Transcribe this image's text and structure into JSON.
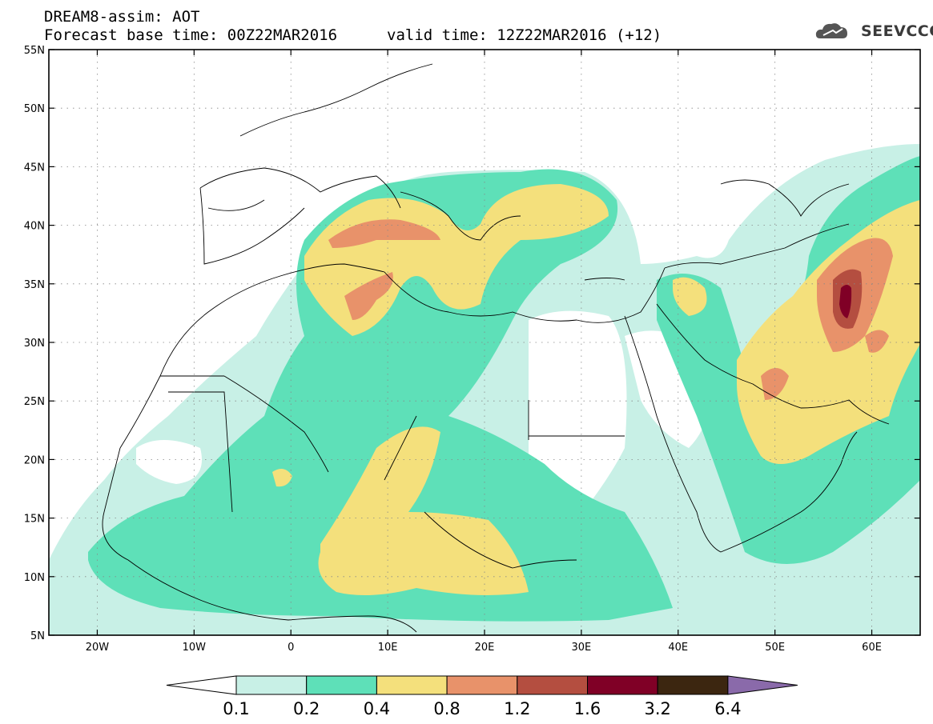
{
  "header": {
    "title_line1": "DREAM8-assim: AOT",
    "base_time": "Forecast base time: 00Z22MAR2016",
    "valid_time": "valid time: 12Z22MAR2016 (+12)",
    "logo_text": "SEEVCCC",
    "logo_icon": "cloud-icon"
  },
  "map": {
    "lon_range": [
      -25,
      65
    ],
    "lat_range": [
      5,
      55
    ],
    "lat_ticks": [
      "55N",
      "50N",
      "45N",
      "40N",
      "35N",
      "30N",
      "25N",
      "20N",
      "15N",
      "10N",
      "5N"
    ],
    "lon_ticks": [
      "20W",
      "10W",
      "0",
      "10E",
      "20E",
      "30E",
      "40E",
      "50E",
      "60E"
    ],
    "gridlines": "dotted"
  },
  "colorbar": {
    "labels": [
      "0.1",
      "0.2",
      "0.4",
      "0.8",
      "1.2",
      "1.6",
      "3.2",
      "6.4"
    ],
    "colors": [
      "#ffffff",
      "#c8f0e6",
      "#5ee0b8",
      "#f4e07c",
      "#e8926a",
      "#b44e40",
      "#800026",
      "#3c2610",
      "#8a6aaa"
    ]
  }
}
